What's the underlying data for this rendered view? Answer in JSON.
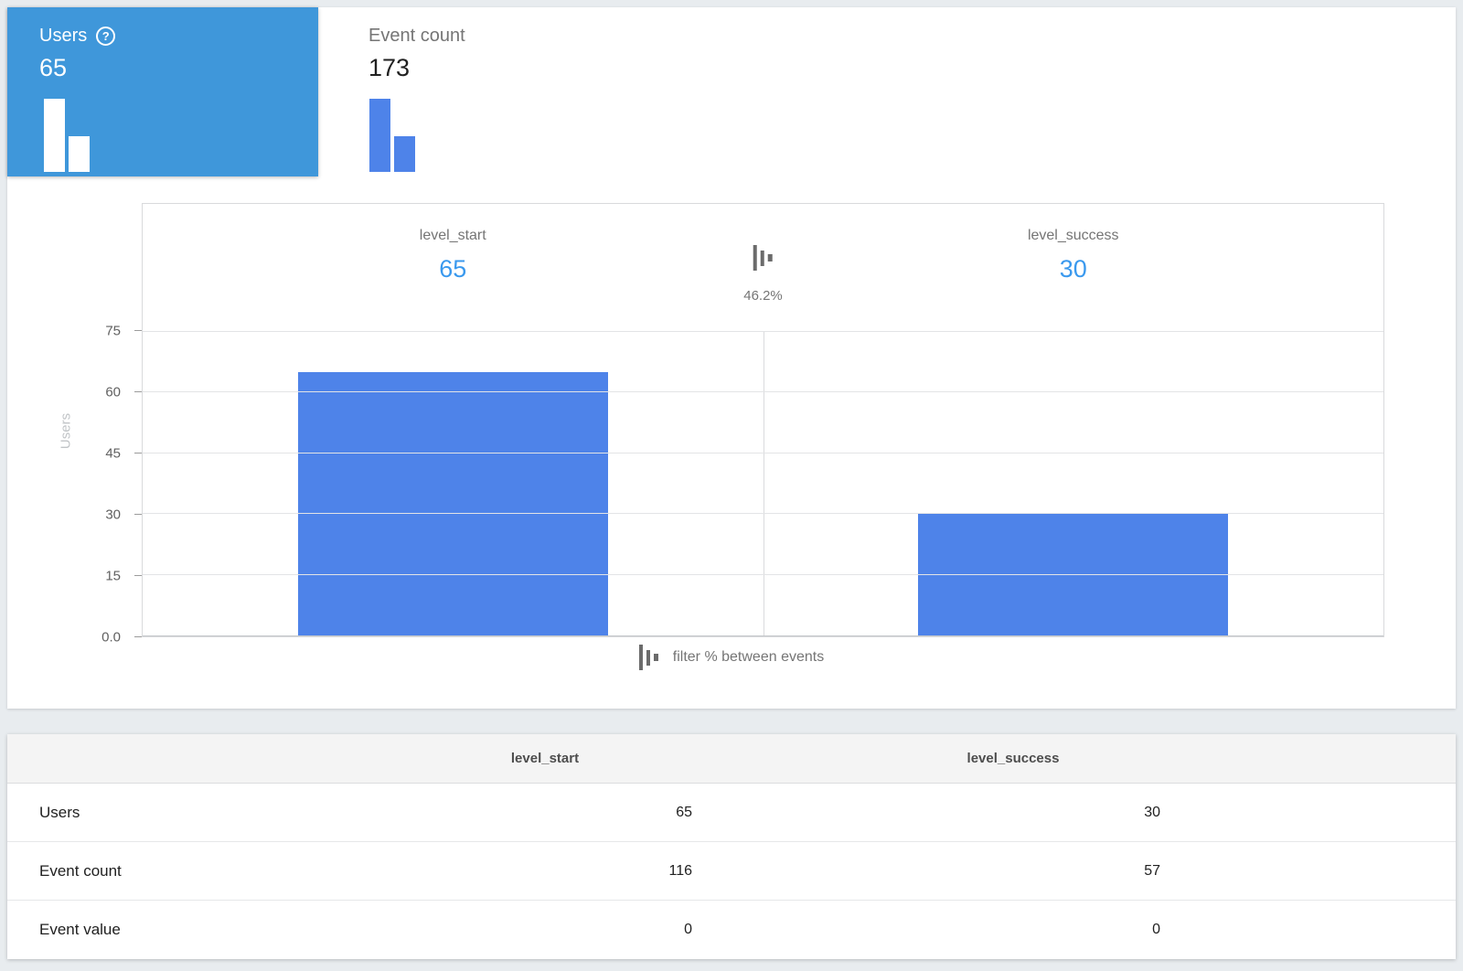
{
  "metric_tabs": [
    {
      "label": "Users",
      "value": "65",
      "selected": true
    },
    {
      "label": "Event count",
      "value": "173",
      "selected": false
    }
  ],
  "funnel": {
    "transition_percent": "46.2%",
    "legend_text": "filter % between events"
  },
  "chart_data": {
    "type": "bar",
    "categories": [
      "level_start",
      "level_success"
    ],
    "series": [
      {
        "name": "Users",
        "values": [
          65,
          30
        ]
      }
    ],
    "title": "",
    "xlabel": "",
    "ylabel": "Users",
    "ylim": [
      0,
      75
    ],
    "yticks": [
      0,
      15,
      30,
      45,
      60,
      75
    ],
    "ytick_display": [
      "0.0",
      "15",
      "30",
      "45",
      "60",
      "75"
    ],
    "annotations": [
      "46.2%"
    ],
    "grid": true,
    "legend_position": "none"
  },
  "table": {
    "columns": [
      "level_start",
      "level_success"
    ],
    "rows": [
      {
        "label": "Users",
        "values": [
          "65",
          "30"
        ]
      },
      {
        "label": "Event count",
        "values": [
          "116",
          "57"
        ]
      },
      {
        "label": "Event value",
        "values": [
          "0",
          "0"
        ]
      }
    ]
  },
  "colors": {
    "selected_tab_blue": "#3f97da",
    "bar_blue": "#4e83e9",
    "value_link_blue": "#3a99ee",
    "page_background": "#e8ecef"
  }
}
